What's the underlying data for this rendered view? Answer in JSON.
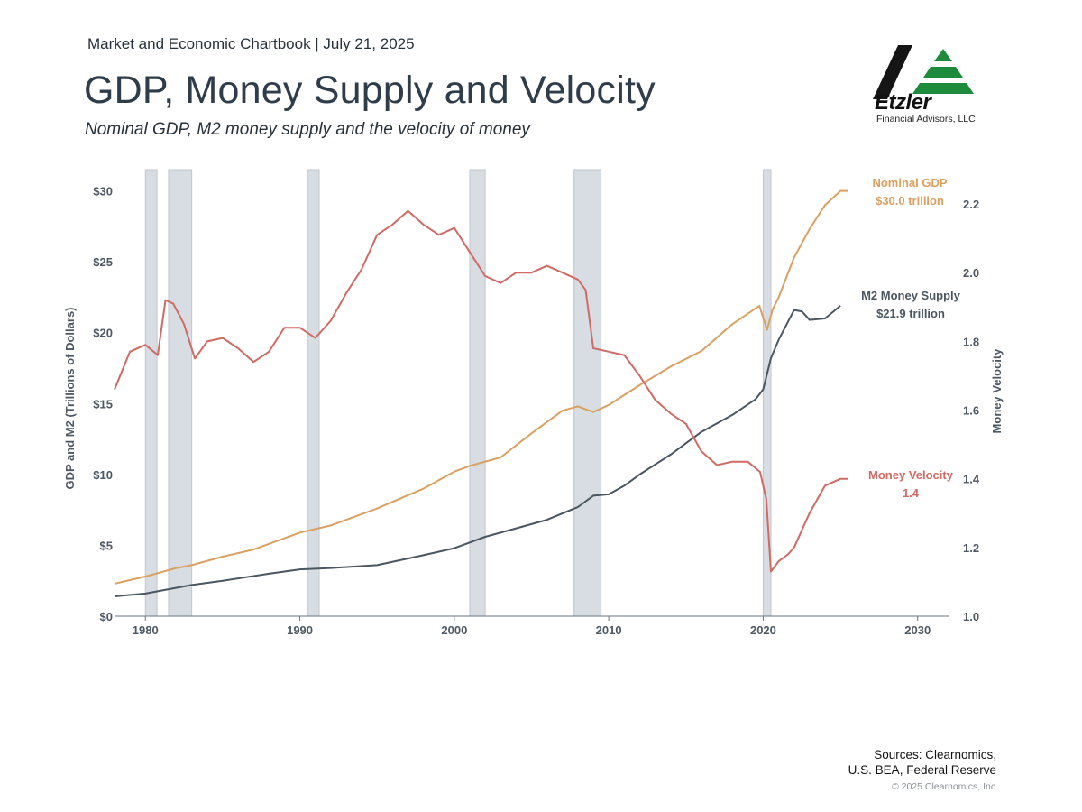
{
  "header": {
    "kicker": "Market and Economic Chartbook | July 21, 2025",
    "title": "GDP, Money Supply and Velocity",
    "subtitle": "Nominal GDP, M2 money supply and the velocity of money"
  },
  "logo": {
    "name": "Etzler",
    "caption": "Financial Advisors, LLC",
    "colors": {
      "dark": "#151515",
      "green": "#1d8a3c"
    }
  },
  "footer": {
    "sources_line1": "Sources: Clearnomics,",
    "sources_line2": "U.S. BEA, Federal Reserve",
    "copyright": "© 2025 Clearnomics, Inc."
  },
  "chart_data": {
    "type": "line",
    "ylabel": "GDP and M2 (Trillions of Dollars)",
    "y2label": "Money Velocity",
    "xlim": [
      1978,
      2032
    ],
    "ylim": [
      0,
      31.5
    ],
    "y2lim": [
      1.0,
      2.3
    ],
    "x_ticks": [
      1980,
      1990,
      2000,
      2010,
      2020,
      2030
    ],
    "y_ticks": [
      {
        "value": 0,
        "label": "$0"
      },
      {
        "value": 5,
        "label": "$5"
      },
      {
        "value": 10,
        "label": "$10"
      },
      {
        "value": 15,
        "label": "$15"
      },
      {
        "value": 20,
        "label": "$20"
      },
      {
        "value": 25,
        "label": "$25"
      },
      {
        "value": 30,
        "label": "$30"
      }
    ],
    "y2_ticks": [
      {
        "value": 1.0,
        "label": "1.0"
      },
      {
        "value": 1.2,
        "label": "1.2"
      },
      {
        "value": 1.4,
        "label": "1.4"
      },
      {
        "value": 1.6,
        "label": "1.6"
      },
      {
        "value": 1.8,
        "label": "1.8"
      },
      {
        "value": 2.0,
        "label": "2.0"
      },
      {
        "value": 2.2,
        "label": "2.2"
      }
    ],
    "recessions": [
      [
        1980.0,
        1980.75
      ],
      [
        1981.5,
        1983.0
      ],
      [
        1990.5,
        1991.25
      ],
      [
        2001.0,
        2002.0
      ],
      [
        2007.75,
        2009.5
      ],
      [
        2020.0,
        2020.5
      ]
    ],
    "colors": {
      "gdp": "#d9a060",
      "m2": "#4a5661",
      "velocity": "#cf6a64",
      "recession": "#d7dde2",
      "axis": "#6b7580"
    },
    "series": [
      {
        "name": "Nominal GDP",
        "key": "gdp",
        "axis": "left",
        "annotation": [
          "Nominal GDP",
          "$30.0 trillion"
        ],
        "points": [
          [
            1978,
            2.3
          ],
          [
            1980,
            2.8
          ],
          [
            1981,
            3.1
          ],
          [
            1982,
            3.4
          ],
          [
            1983,
            3.6
          ],
          [
            1985,
            4.2
          ],
          [
            1987,
            4.7
          ],
          [
            1990,
            5.9
          ],
          [
            1992,
            6.4
          ],
          [
            1995,
            7.6
          ],
          [
            1998,
            9.0
          ],
          [
            2000,
            10.2
          ],
          [
            2001,
            10.6
          ],
          [
            2003,
            11.2
          ],
          [
            2005,
            12.9
          ],
          [
            2007,
            14.5
          ],
          [
            2008,
            14.8
          ],
          [
            2009,
            14.4
          ],
          [
            2010,
            14.9
          ],
          [
            2012,
            16.3
          ],
          [
            2014,
            17.6
          ],
          [
            2016,
            18.7
          ],
          [
            2018,
            20.6
          ],
          [
            2019.75,
            21.9
          ],
          [
            2020.25,
            20.2
          ],
          [
            2020.6,
            21.6
          ],
          [
            2021,
            22.5
          ],
          [
            2022,
            25.3
          ],
          [
            2023,
            27.3
          ],
          [
            2024,
            29.0
          ],
          [
            2025,
            30.0
          ],
          [
            2025.5,
            30.0
          ]
        ]
      },
      {
        "name": "M2 Money Supply",
        "key": "m2",
        "axis": "left",
        "annotation": [
          "M2 Money Supply",
          "$21.9 trillion"
        ],
        "points": [
          [
            1978,
            1.4
          ],
          [
            1980,
            1.6
          ],
          [
            1983,
            2.2
          ],
          [
            1985,
            2.5
          ],
          [
            1988,
            3.0
          ],
          [
            1990,
            3.3
          ],
          [
            1992,
            3.4
          ],
          [
            1995,
            3.6
          ],
          [
            1998,
            4.3
          ],
          [
            2000,
            4.8
          ],
          [
            2002,
            5.6
          ],
          [
            2004,
            6.2
          ],
          [
            2006,
            6.8
          ],
          [
            2008,
            7.7
          ],
          [
            2009,
            8.5
          ],
          [
            2010,
            8.6
          ],
          [
            2011,
            9.2
          ],
          [
            2012,
            10.0
          ],
          [
            2014,
            11.4
          ],
          [
            2016,
            13.0
          ],
          [
            2018,
            14.2
          ],
          [
            2019.5,
            15.3
          ],
          [
            2020,
            16.0
          ],
          [
            2020.5,
            18.2
          ],
          [
            2021,
            19.5
          ],
          [
            2022,
            21.6
          ],
          [
            2022.5,
            21.5
          ],
          [
            2023,
            20.9
          ],
          [
            2024,
            21.0
          ],
          [
            2025,
            21.9
          ]
        ]
      },
      {
        "name": "Money Velocity",
        "key": "velocity",
        "axis": "right",
        "annotation": [
          "Money Velocity",
          "1.4"
        ],
        "points": [
          [
            1978,
            1.66
          ],
          [
            1979,
            1.77
          ],
          [
            1980,
            1.79
          ],
          [
            1980.8,
            1.76
          ],
          [
            1981.3,
            1.92
          ],
          [
            1981.8,
            1.91
          ],
          [
            1982.5,
            1.85
          ],
          [
            1983.2,
            1.75
          ],
          [
            1984,
            1.8
          ],
          [
            1985,
            1.81
          ],
          [
            1986,
            1.78
          ],
          [
            1987,
            1.74
          ],
          [
            1988,
            1.77
          ],
          [
            1989,
            1.84
          ],
          [
            1990,
            1.84
          ],
          [
            1991,
            1.81
          ],
          [
            1992,
            1.86
          ],
          [
            1993,
            1.94
          ],
          [
            1994,
            2.01
          ],
          [
            1995,
            2.11
          ],
          [
            1996,
            2.14
          ],
          [
            1997,
            2.18
          ],
          [
            1998,
            2.14
          ],
          [
            1999,
            2.11
          ],
          [
            2000,
            2.13
          ],
          [
            2001,
            2.06
          ],
          [
            2002,
            1.99
          ],
          [
            2003,
            1.97
          ],
          [
            2004,
            2.0
          ],
          [
            2005,
            2.0
          ],
          [
            2006,
            2.02
          ],
          [
            2007,
            2.0
          ],
          [
            2008,
            1.98
          ],
          [
            2008.5,
            1.95
          ],
          [
            2009,
            1.78
          ],
          [
            2010,
            1.77
          ],
          [
            2011,
            1.76
          ],
          [
            2012,
            1.7
          ],
          [
            2013,
            1.63
          ],
          [
            2014,
            1.59
          ],
          [
            2015,
            1.56
          ],
          [
            2016,
            1.48
          ],
          [
            2017,
            1.44
          ],
          [
            2018,
            1.45
          ],
          [
            2019,
            1.45
          ],
          [
            2019.8,
            1.42
          ],
          [
            2020.2,
            1.34
          ],
          [
            2020.5,
            1.13
          ],
          [
            2021,
            1.16
          ],
          [
            2021.6,
            1.18
          ],
          [
            2022,
            1.2
          ],
          [
            2023,
            1.3
          ],
          [
            2024,
            1.38
          ],
          [
            2025,
            1.4
          ],
          [
            2025.5,
            1.4
          ]
        ]
      }
    ]
  }
}
